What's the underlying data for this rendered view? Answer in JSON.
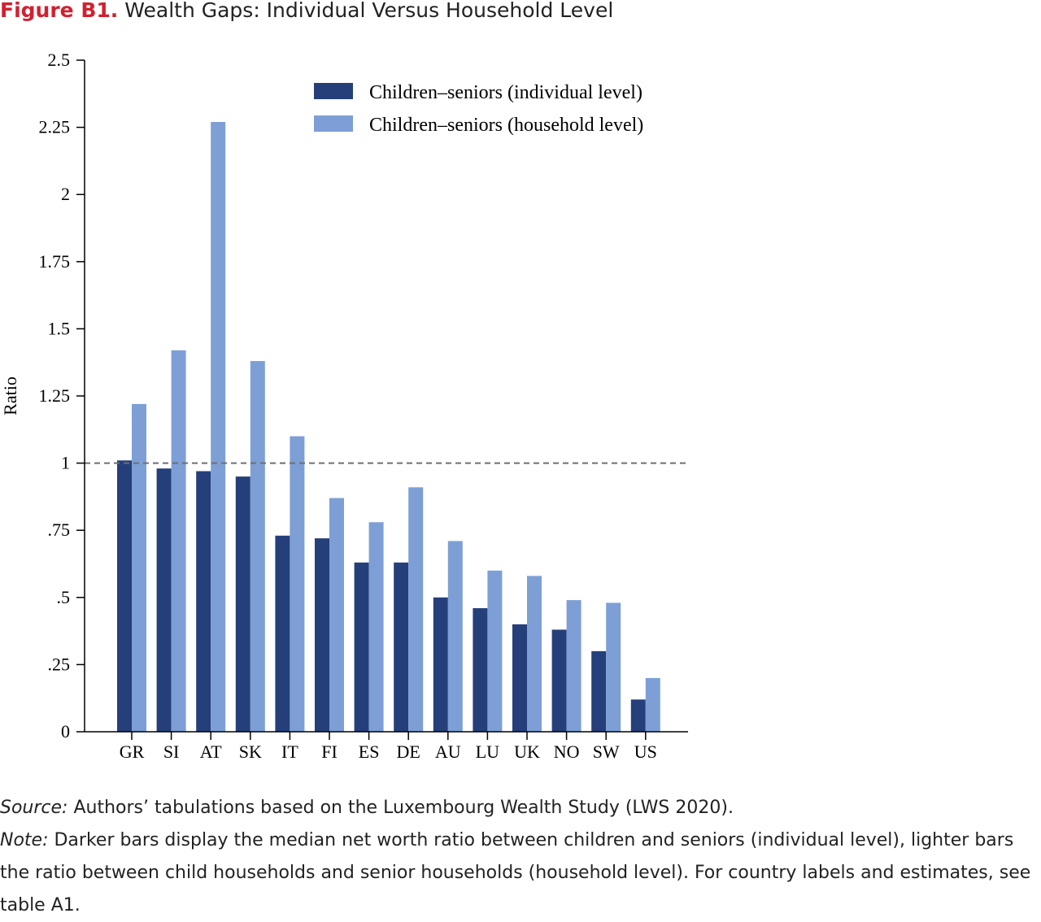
{
  "figure": {
    "label": "Figure B1.",
    "title": "Wealth Gaps: Individual Versus Household Level"
  },
  "chart_data": {
    "type": "bar",
    "ylabel": "Ratio",
    "xlabel": "",
    "ylim": [
      0,
      2.5
    ],
    "yticks": [
      0,
      0.25,
      0.5,
      0.75,
      1,
      1.25,
      1.5,
      1.75,
      2,
      2.25,
      2.5
    ],
    "ytick_labels": [
      "0",
      ".25",
      ".5",
      ".75",
      "1",
      "1.25",
      "1.5",
      "1.75",
      "2",
      "2.25",
      "2.5"
    ],
    "reference_line": 1,
    "legend_position": "top-center",
    "categories": [
      "GR",
      "SI",
      "AT",
      "SK",
      "IT",
      "FI",
      "ES",
      "DE",
      "AU",
      "LU",
      "UK",
      "NO",
      "SW",
      "US"
    ],
    "series": [
      {
        "name": "Children–seniors (individual level)",
        "color": "#253f7a",
        "values": [
          1.01,
          0.98,
          0.97,
          0.95,
          0.73,
          0.72,
          0.63,
          0.63,
          0.5,
          0.46,
          0.4,
          0.38,
          0.3,
          0.12
        ]
      },
      {
        "name": "Children–seniors (household level)",
        "color": "#7d9fd6",
        "values": [
          1.22,
          1.42,
          2.27,
          1.38,
          1.1,
          0.87,
          0.78,
          0.91,
          0.71,
          0.6,
          0.58,
          0.49,
          0.48,
          0.2
        ]
      }
    ]
  },
  "notes": {
    "source_lead": "Source:",
    "source_text": " Authors’ tabulations based on the Luxembourg Wealth Study (LWS 2020).",
    "note_lead": "Note:",
    "note_text": " Darker bars display the median net worth ratio between children and seniors (individual level), lighter bars the ratio between child households and senior households (household level). For country labels and estimates, see table A1."
  }
}
